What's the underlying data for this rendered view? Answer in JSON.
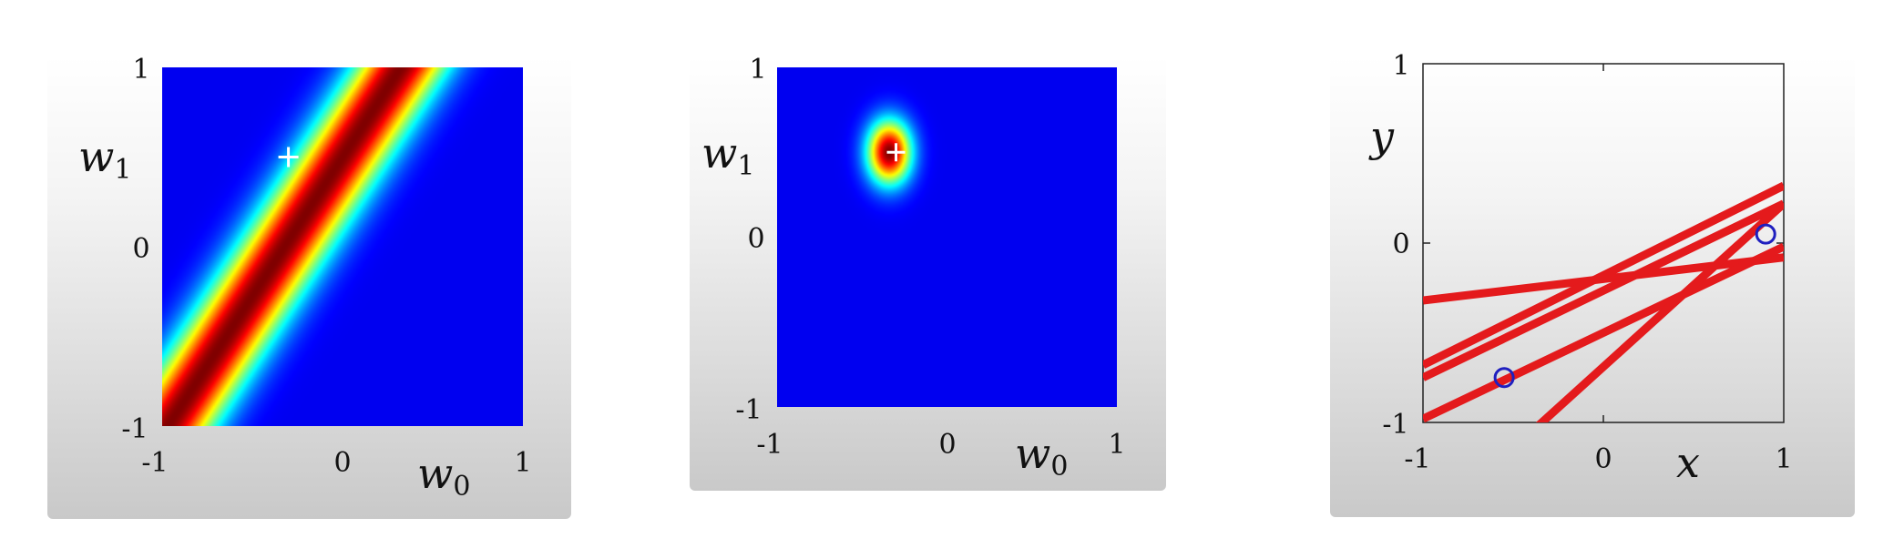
{
  "chart_data": [
    {
      "type": "heatmap",
      "title": "",
      "xlabel": "w",
      "xlabel_sub": "0",
      "ylabel": "w",
      "ylabel_sub": "1",
      "xlim": [
        -1,
        1
      ],
      "ylim": [
        -1,
        1
      ],
      "x_ticks": [
        "-1",
        "0",
        "1"
      ],
      "y_ticks": [
        "-1",
        "0",
        "1"
      ],
      "colormap": "jet",
      "description_values": {
        "ridge_line": {
          "intercept": 0.5,
          "slope": 1.55
        },
        "ridge_width": 0.15,
        "marker": {
          "w0": -0.3,
          "w1": 0.5,
          "symbol": "+"
        }
      }
    },
    {
      "type": "heatmap",
      "title": "",
      "xlabel": "w",
      "xlabel_sub": "0",
      "ylabel": "w",
      "ylabel_sub": "1",
      "xlim": [
        -1,
        1
      ],
      "ylim": [
        -1,
        1
      ],
      "x_ticks": [
        "-1",
        "0",
        "1"
      ],
      "y_ticks": [
        "-1",
        "0",
        "1"
      ],
      "colormap": "jet",
      "description_values": {
        "blob_center": {
          "w0": -0.34,
          "w1": 0.5
        },
        "blob_sigma": {
          "w0": 0.09,
          "w1": 0.13
        },
        "marker": {
          "w0": -0.3,
          "w1": 0.5,
          "symbol": "+"
        }
      }
    },
    {
      "type": "line",
      "title": "",
      "xlabel": "x",
      "ylabel": "y",
      "xlim": [
        -1,
        1
      ],
      "ylim": [
        -1,
        1
      ],
      "x_ticks": [
        "-1",
        "0",
        "1"
      ],
      "y_ticks": [
        "-1",
        "0",
        "1"
      ],
      "line_color": "#e41a1c",
      "lines": [
        {
          "y_at_xmin": -0.32,
          "y_at_xmax": -0.08
        },
        {
          "y_at_xmin": -0.68,
          "y_at_xmax": 0.32
        },
        {
          "y_at_xmin": -0.75,
          "y_at_xmax": 0.22
        },
        {
          "y_at_xmin": -0.98,
          "y_at_xmax": -0.02
        },
        {
          "y_at_xmin": -1.6,
          "y_at_xmax": 0.22
        }
      ],
      "points": [
        {
          "x": -0.55,
          "y": -0.75
        },
        {
          "x": 0.9,
          "y": 0.05
        }
      ],
      "point_color": "#1f1fbf"
    }
  ]
}
